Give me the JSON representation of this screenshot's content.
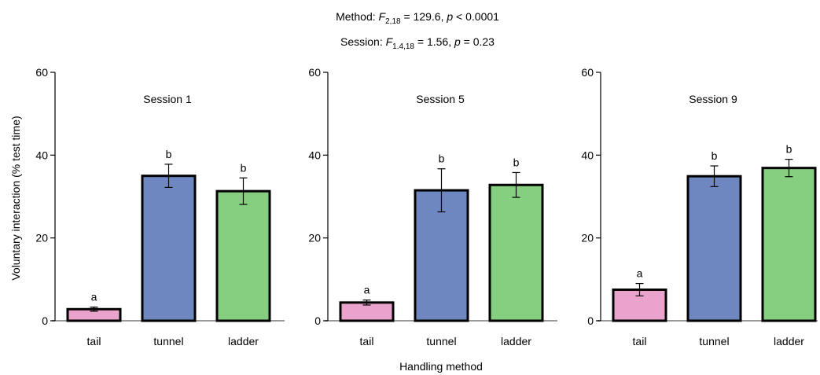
{
  "stats": {
    "line1": {
      "label": "Method: ",
      "F": "F",
      "sub": "2,18",
      "rest": " = 129.6, ",
      "p": "p",
      "pval": " < 0.0001"
    },
    "line2": {
      "label": "Session: ",
      "F": "F",
      "sub": "1.4,18",
      "rest": " = 1.56, ",
      "p": "p",
      "pval": " = 0.23"
    }
  },
  "chart_data": [
    {
      "type": "bar",
      "title": "Session 1",
      "categories": [
        "tail",
        "tunnel",
        "ladder"
      ],
      "values": [
        2.8,
        35.0,
        31.3
      ],
      "errors": [
        0.5,
        2.8,
        3.2
      ],
      "sig_letters": [
        "a",
        "b",
        "b"
      ],
      "ylim": [
        0,
        60
      ],
      "yticks": [
        0,
        20,
        40,
        60
      ],
      "ylabel": "Voluntary interaction (% test time)"
    },
    {
      "type": "bar",
      "title": "Session 5",
      "categories": [
        "tail",
        "tunnel",
        "ladder"
      ],
      "values": [
        4.4,
        31.5,
        32.8
      ],
      "errors": [
        0.6,
        5.2,
        3.0
      ],
      "sig_letters": [
        "a",
        "b",
        "b"
      ],
      "ylim": [
        0,
        60
      ],
      "yticks": [
        0,
        20,
        40,
        60
      ]
    },
    {
      "type": "bar",
      "title": "Session 9",
      "categories": [
        "tail",
        "tunnel",
        "ladder"
      ],
      "values": [
        7.5,
        34.9,
        36.9
      ],
      "errors": [
        1.5,
        2.5,
        2.1
      ],
      "sig_letters": [
        "a",
        "b",
        "b"
      ],
      "ylim": [
        0,
        60
      ],
      "yticks": [
        0,
        20,
        40,
        60
      ]
    }
  ],
  "xlabel": "Handling method",
  "colors": {
    "tail": "#e9a3cc",
    "tunnel": "#6f87c1",
    "ladder": "#87cf80",
    "axis": "#000000",
    "baseline": "#999999"
  }
}
